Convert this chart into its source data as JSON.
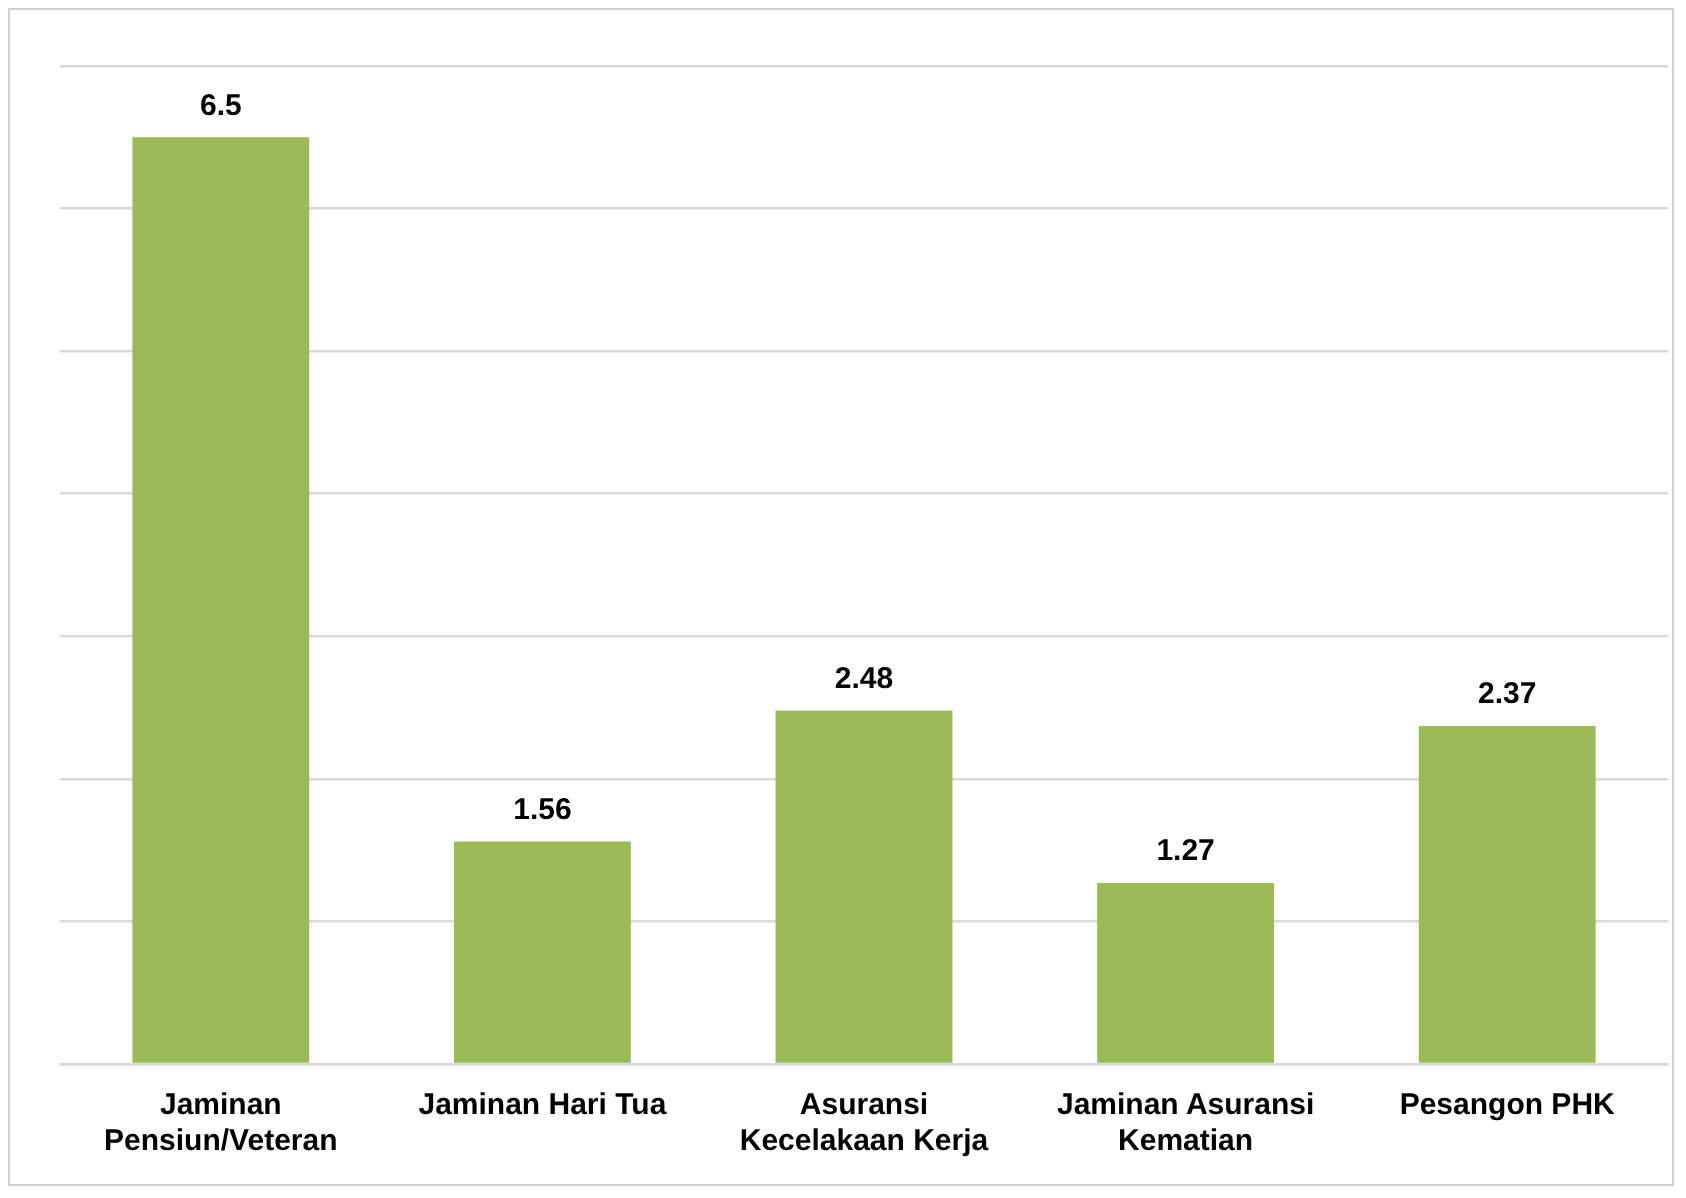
{
  "chart_data": {
    "type": "bar",
    "categories": [
      "Jaminan Pensiun/Veteran",
      "Jaminan Hari Tua",
      "Asuransi Kecelakaan Kerja",
      "Jaminan Asuransi Kematian",
      "Pesangon PHK"
    ],
    "values": [
      6.5,
      1.56,
      2.48,
      1.27,
      2.37
    ],
    "color": "#9bbb59",
    "ylim": [
      0,
      7
    ],
    "yticks": [
      {
        "value": 0,
        "label": null
      },
      {
        "value": 1,
        "label": null
      },
      {
        "value": 2,
        "label": null
      },
      {
        "value": 3,
        "label": null
      },
      {
        "value": 4,
        "label": null
      },
      {
        "value": 5,
        "label": null
      },
      {
        "value": 6,
        "label": null
      },
      {
        "value": 7,
        "label": null
      }
    ],
    "tick_labels": "x",
    "grid": "y",
    "legend": false,
    "data_labels": true
  }
}
